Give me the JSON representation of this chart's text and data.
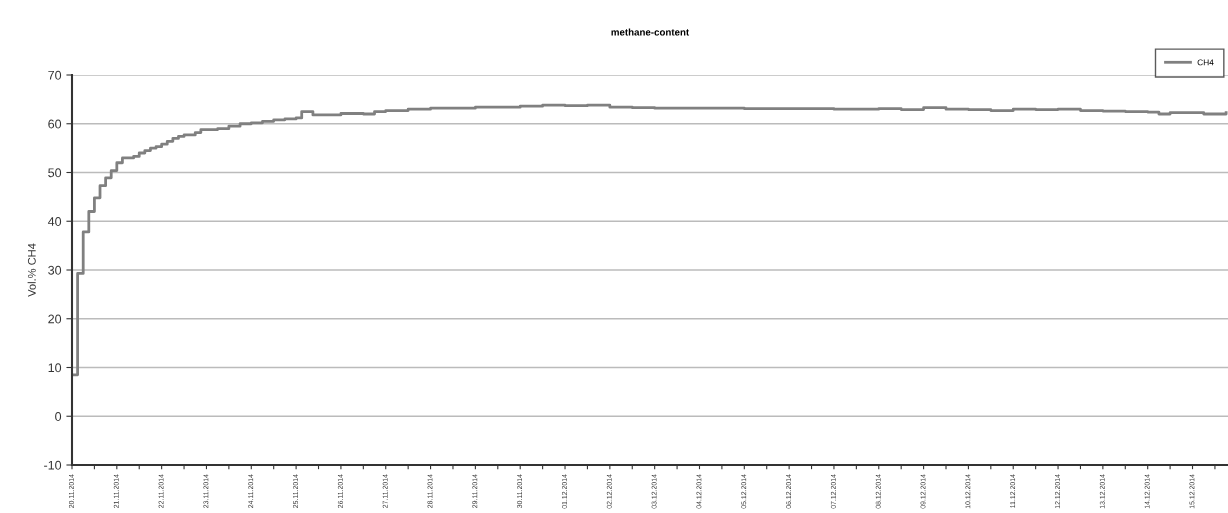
{
  "chart_data": {
    "type": "step",
    "title": "methane-content",
    "ylabel": "Vol.% CH4",
    "series": [
      {
        "name": "CH4",
        "color": "#808080",
        "x": [
          "2014-11-20T00:00",
          "2014-11-20T03:00",
          "2014-11-20T06:00",
          "2014-11-20T09:00",
          "2014-11-20T12:00",
          "2014-11-20T15:00",
          "2014-11-20T18:00",
          "2014-11-20T21:00",
          "2014-11-21T00:00",
          "2014-11-21T03:00",
          "2014-11-21T09:00",
          "2014-11-21T12:00",
          "2014-11-21T15:00",
          "2014-11-21T18:00",
          "2014-11-21T21:00",
          "2014-11-22T00:00",
          "2014-11-22T03:00",
          "2014-11-22T06:00",
          "2014-11-22T09:00",
          "2014-11-22T12:00",
          "2014-11-22T18:00",
          "2014-11-22T21:00",
          "2014-11-23T06:00",
          "2014-11-23T12:00",
          "2014-11-23T18:00",
          "2014-11-24T00:00",
          "2014-11-24T06:00",
          "2014-11-24T12:00",
          "2014-11-24T18:00",
          "2014-11-25T00:00",
          "2014-11-25T03:00",
          "2014-11-25T09:00",
          "2014-11-26T00:00",
          "2014-11-26T12:00",
          "2014-11-26T18:00",
          "2014-11-27T00:00",
          "2014-11-27T12:00",
          "2014-11-28T00:00",
          "2014-11-29T00:00",
          "2014-11-30T00:00",
          "2014-11-30T12:00",
          "2014-12-01T00:00",
          "2014-12-01T12:00",
          "2014-12-02T00:00",
          "2014-12-02T12:00",
          "2014-12-03T00:00",
          "2014-12-04T00:00",
          "2014-12-05T00:00",
          "2014-12-06T00:00",
          "2014-12-07T00:00",
          "2014-12-08T00:00",
          "2014-12-08T12:00",
          "2014-12-09T00:00",
          "2014-12-09T12:00",
          "2014-12-10T00:00",
          "2014-12-10T12:00",
          "2014-12-11T00:00",
          "2014-12-11T12:00",
          "2014-12-12T00:00",
          "2014-12-12T12:00",
          "2014-12-13T00:00",
          "2014-12-13T12:00",
          "2014-12-14T00:00",
          "2014-12-14T06:00",
          "2014-12-14T12:00",
          "2014-12-15T00:00",
          "2014-12-15T06:00",
          "2014-12-15T18:00"
        ],
        "values": [
          8.5,
          29.3,
          37.8,
          42,
          44.8,
          47.3,
          48.9,
          50.4,
          52,
          53,
          53.3,
          54,
          54.5,
          55,
          55.3,
          55.8,
          56.4,
          57,
          57.4,
          57.7,
          58.2,
          58.8,
          59,
          59.5,
          60,
          60.2,
          60.5,
          60.8,
          61,
          61.2,
          62.5,
          61.8,
          62.1,
          62,
          62.5,
          62.7,
          63,
          63.2,
          63.4,
          63.6,
          63.8,
          63.7,
          63.8,
          63.4,
          63.3,
          63.2,
          63.2,
          63.1,
          63.1,
          63,
          63.1,
          62.9,
          63.3,
          63,
          62.9,
          62.7,
          63,
          62.9,
          63,
          62.7,
          62.6,
          62.5,
          62.4,
          62,
          62.3,
          62.3,
          62,
          62.3
        ]
      }
    ],
    "ylim": [
      -10,
      70
    ],
    "yticks": [
      -10,
      0,
      10,
      20,
      30,
      40,
      50,
      60,
      70
    ],
    "xlim": [
      "2014-11-20T00:00",
      "2014-12-15T19:00"
    ],
    "xticks": [
      {
        "value": "2014-11-20",
        "label": "20.11.2014"
      },
      {
        "value": "2014-11-20T12:00",
        "label": null
      },
      {
        "value": "2014-11-21",
        "label": "21.11.2014"
      },
      {
        "value": "2014-11-21T12:00",
        "label": null
      },
      {
        "value": "2014-11-22",
        "label": "22.11.2014"
      },
      {
        "value": "2014-11-22T12:00",
        "label": null
      },
      {
        "value": "2014-11-23",
        "label": "23.11.2014"
      },
      {
        "value": "2014-11-23T12:00",
        "label": null
      },
      {
        "value": "2014-11-24",
        "label": "24.11.2014"
      },
      {
        "value": "2014-11-24T12:00",
        "label": null
      },
      {
        "value": "2014-11-25",
        "label": "25.11.2014"
      },
      {
        "value": "2014-11-25T12:00",
        "label": null
      },
      {
        "value": "2014-11-26",
        "label": "26.11.2014"
      },
      {
        "value": "2014-11-26T12:00",
        "label": null
      },
      {
        "value": "2014-11-27",
        "label": "27.11.2014"
      },
      {
        "value": "2014-11-27T12:00",
        "label": null
      },
      {
        "value": "2014-11-28",
        "label": "28.11.2014"
      },
      {
        "value": "2014-11-28T12:00",
        "label": null
      },
      {
        "value": "2014-11-29",
        "label": "29.11.2014"
      },
      {
        "value": "2014-11-29T12:00",
        "label": null
      },
      {
        "value": "2014-11-30",
        "label": "30.11.2014"
      },
      {
        "value": "2014-11-30T12:00",
        "label": null
      },
      {
        "value": "2014-12-01",
        "label": "01.12.2014"
      },
      {
        "value": "2014-12-01T12:00",
        "label": null
      },
      {
        "value": "2014-12-02",
        "label": "02.12.2014"
      },
      {
        "value": "2014-12-02T12:00",
        "label": null
      },
      {
        "value": "2014-12-03",
        "label": "03.12.2014"
      },
      {
        "value": "2014-12-03T12:00",
        "label": null
      },
      {
        "value": "2014-12-04",
        "label": "04.12.2014"
      },
      {
        "value": "2014-12-04T12:00",
        "label": null
      },
      {
        "value": "2014-12-05",
        "label": "05.12.2014"
      },
      {
        "value": "2014-12-05T12:00",
        "label": null
      },
      {
        "value": "2014-12-06",
        "label": "06.12.2014"
      },
      {
        "value": "2014-12-06T12:00",
        "label": null
      },
      {
        "value": "2014-12-07",
        "label": "07.12.2014"
      },
      {
        "value": "2014-12-07T12:00",
        "label": null
      },
      {
        "value": "2014-12-08",
        "label": "08.12.2014"
      },
      {
        "value": "2014-12-08T12:00",
        "label": null
      },
      {
        "value": "2014-12-09",
        "label": "09.12.2014"
      },
      {
        "value": "2014-12-09T12:00",
        "label": null
      },
      {
        "value": "2014-12-10",
        "label": "10.12.2014"
      },
      {
        "value": "2014-12-10T12:00",
        "label": null
      },
      {
        "value": "2014-12-11",
        "label": "11.12.2014"
      },
      {
        "value": "2014-12-11T12:00",
        "label": null
      },
      {
        "value": "2014-12-12",
        "label": "12.12.2014"
      },
      {
        "value": "2014-12-12T12:00",
        "label": null
      },
      {
        "value": "2014-12-13",
        "label": "13.12.2014"
      },
      {
        "value": "2014-12-13T12:00",
        "label": null
      },
      {
        "value": "2014-12-14",
        "label": "14.12.2014"
      },
      {
        "value": "2014-12-14T12:00",
        "label": null
      },
      {
        "value": "2014-12-15",
        "label": "15.12.2014"
      },
      {
        "value": "2014-12-15T12:00",
        "label": null
      }
    ],
    "grid": "y",
    "legend": "top right",
    "line_style": "solid",
    "marker": "none"
  }
}
